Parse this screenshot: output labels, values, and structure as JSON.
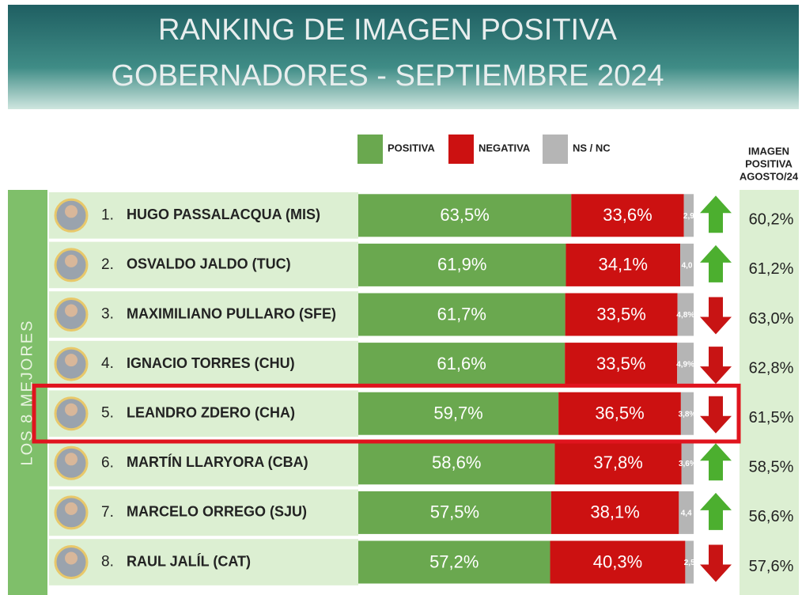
{
  "chart_data": {
    "type": "bar",
    "orientation": "horizontal",
    "stacked": true,
    "title": "RANKING DE IMAGEN POSITIVA",
    "subtitle": "GOBERNADORES - SEPTIEMBRE 2024",
    "side_label": "LOS 8 MEJORES",
    "ranks": [
      "1.",
      "2.",
      "3.",
      "4.",
      "5.",
      "6.",
      "7.",
      "8."
    ],
    "categories": [
      "HUGO PASSALACQUA (MIS)",
      "OSVALDO JALDO (TUC)",
      "MAXIMILIANO PULLARO (SFE)",
      "IGNACIO TORRES (CHU)",
      "LEANDRO ZDERO (CHA)",
      "MARTÍN LLARYORA (CBA)",
      "MARCELO ORREGO (SJU)",
      "RAUL JALÍL (CAT)"
    ],
    "series": [
      {
        "name": "POSITIVA",
        "color": "#6aa84f",
        "values": [
          63.5,
          61.9,
          61.7,
          61.6,
          59.7,
          58.6,
          57.5,
          57.2
        ],
        "value_labels": [
          "63,5%",
          "61,9%",
          "61,7%",
          "61,6%",
          "59,7%",
          "58,6%",
          "57,5%",
          "57,2%"
        ]
      },
      {
        "name": "NEGATIVA",
        "color": "#cc1111",
        "values": [
          33.6,
          34.1,
          33.5,
          33.5,
          36.5,
          37.8,
          38.1,
          40.3
        ],
        "value_labels": [
          "33,6%",
          "34,1%",
          "33,5%",
          "33,5%",
          "36,5%",
          "37,8%",
          "38,1%",
          "40,3%"
        ]
      },
      {
        "name": "NS / NC",
        "color": "#b5b5b5",
        "values": [
          2.9,
          4.0,
          4.8,
          4.9,
          3.8,
          3.6,
          4.4,
          2.5
        ],
        "value_labels": [
          "2,9",
          "4,0",
          "4,8%",
          "4,9%",
          "3,8%",
          "3,6%",
          "4,4",
          "2,5"
        ]
      }
    ],
    "previous": {
      "title": [
        "IMAGEN",
        "POSITIVA",
        "AGOSTO/24"
      ],
      "values": [
        60.2,
        61.2,
        63.0,
        62.8,
        61.5,
        58.5,
        56.6,
        57.6
      ],
      "value_labels": [
        "60,2%",
        "61,2%",
        "63,0%",
        "62,8%",
        "61,5%",
        "58,5%",
        "56,6%",
        "57,6%"
      ]
    },
    "xlim": [
      0,
      100
    ],
    "highlight": 4
  }
}
